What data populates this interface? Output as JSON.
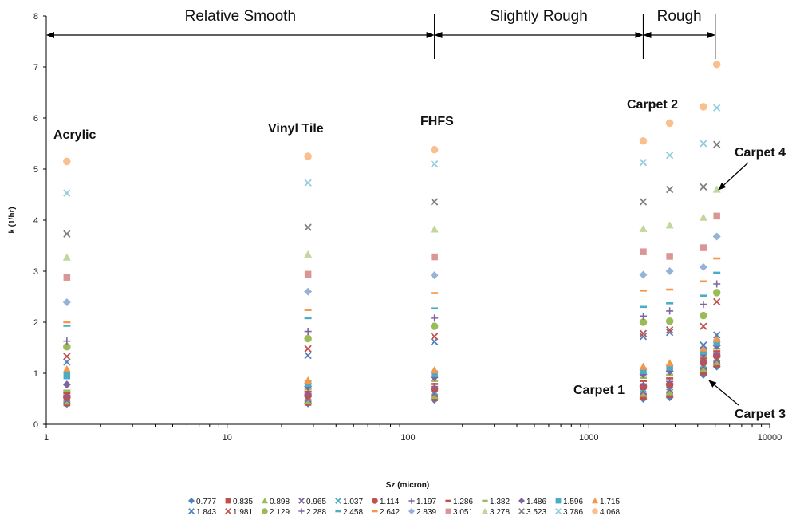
{
  "chart_data": {
    "type": "scatter",
    "x_scale": "log",
    "xlim": [
      1,
      10000
    ],
    "ylim": [
      0,
      8
    ],
    "xlabel": "Sz (micron)",
    "ylabel": "k (1/hr)",
    "xticks": [
      "1",
      "10",
      "100",
      "1000",
      "10000"
    ],
    "yticks": [
      "0",
      "1",
      "2",
      "3",
      "4",
      "5",
      "6",
      "7",
      "8"
    ],
    "grid": false,
    "legend_position": "bottom",
    "regions": [
      {
        "label": "Relative Smooth",
        "from": 1,
        "to": 140
      },
      {
        "label": "Slightly Rough",
        "from": 140,
        "to": 2000
      },
      {
        "label": "Rough",
        "from": 2000,
        "to": 5000
      }
    ],
    "surfaces": [
      "Acrylic",
      "Vinyl Tile",
      "FHFS",
      "Carpet 1",
      "Carpet 2",
      "Carpet 3",
      "Carpet 4"
    ],
    "x": [
      1.3,
      28,
      140,
      2000,
      2800,
      4300,
      5100
    ],
    "series": [
      {
        "name": "0.777",
        "marker": "diamond",
        "color": "#4f81bd",
        "values": [
          0.4,
          0.41,
          0.48,
          0.5,
          0.53,
          0.97,
          1.13
        ]
      },
      {
        "name": "0.835",
        "marker": "square",
        "color": "#c0504d",
        "values": [
          0.42,
          0.43,
          0.52,
          0.55,
          0.58,
          1.03,
          1.18
        ]
      },
      {
        "name": "0.898",
        "marker": "triangle",
        "color": "#9bbb59",
        "values": [
          0.45,
          0.46,
          0.56,
          0.6,
          0.63,
          1.08,
          1.22
        ]
      },
      {
        "name": "0.965",
        "marker": "cross",
        "color": "#8064a2",
        "values": [
          0.47,
          0.49,
          0.6,
          0.64,
          0.68,
          1.13,
          1.26
        ]
      },
      {
        "name": "1.037",
        "marker": "cross",
        "color": "#4bacc6",
        "values": [
          0.5,
          0.52,
          0.64,
          0.69,
          0.73,
          1.17,
          1.3
        ]
      },
      {
        "name": "1.114",
        "marker": "circle",
        "color": "#c0504d",
        "values": [
          0.53,
          0.56,
          0.69,
          0.74,
          0.78,
          1.21,
          1.34
        ]
      },
      {
        "name": "1.197",
        "marker": "plus",
        "color": "#8064a2",
        "values": [
          0.57,
          0.6,
          0.74,
          0.79,
          0.84,
          1.25,
          1.38
        ]
      },
      {
        "name": "1.286",
        "marker": "dash",
        "color": "#c0504d",
        "values": [
          0.61,
          0.64,
          0.79,
          0.85,
          0.9,
          1.29,
          1.43
        ]
      },
      {
        "name": "1.382",
        "marker": "dash",
        "color": "#9bbb59",
        "values": [
          0.66,
          0.69,
          0.85,
          0.91,
          0.97,
          1.34,
          1.48
        ]
      },
      {
        "name": "1.486",
        "marker": "diamond",
        "color": "#8064a2",
        "values": [
          0.78,
          0.74,
          0.92,
          0.98,
          1.04,
          1.38,
          1.54
        ]
      },
      {
        "name": "1.596",
        "marker": "square",
        "color": "#4bacc6",
        "values": [
          0.95,
          0.8,
          0.99,
          1.05,
          1.12,
          1.43,
          1.6
        ]
      },
      {
        "name": "1.715",
        "marker": "triangle",
        "color": "#f79646",
        "values": [
          1.08,
          0.86,
          1.06,
          1.13,
          1.2,
          1.49,
          1.67
        ]
      },
      {
        "name": "1.843",
        "marker": "cross",
        "color": "#4f81bd",
        "values": [
          1.22,
          1.35,
          1.62,
          1.72,
          1.8,
          1.55,
          1.75
        ]
      },
      {
        "name": "1.981",
        "marker": "cross",
        "color": "#c0504d",
        "values": [
          1.33,
          1.48,
          1.72,
          1.78,
          1.85,
          1.92,
          2.4
        ]
      },
      {
        "name": "2.129",
        "marker": "circle",
        "color": "#9bbb59",
        "values": [
          1.52,
          1.68,
          1.92,
          2.0,
          2.02,
          2.13,
          2.58
        ]
      },
      {
        "name": "2.288",
        "marker": "plus",
        "color": "#8064a2",
        "values": [
          1.63,
          1.82,
          2.08,
          2.12,
          2.22,
          2.35,
          2.75
        ]
      },
      {
        "name": "2.458",
        "marker": "dash",
        "color": "#4bacc6",
        "values": [
          1.93,
          2.08,
          2.27,
          2.3,
          2.37,
          2.52,
          2.97
        ]
      },
      {
        "name": "2.642",
        "marker": "dash",
        "color": "#f79646",
        "values": [
          2.0,
          2.24,
          2.57,
          2.62,
          2.64,
          2.8,
          3.25
        ]
      },
      {
        "name": "2.839",
        "marker": "diamond",
        "color": "#95b3d7",
        "values": [
          2.39,
          2.6,
          2.92,
          2.93,
          3.0,
          3.08,
          3.68
        ]
      },
      {
        "name": "3.051",
        "marker": "square",
        "color": "#d99694",
        "values": [
          2.88,
          2.94,
          3.28,
          3.38,
          3.29,
          3.46,
          4.08
        ]
      },
      {
        "name": "3.278",
        "marker": "triangle",
        "color": "#c3d69b",
        "values": [
          3.27,
          3.33,
          3.82,
          3.83,
          3.9,
          4.05,
          4.6
        ]
      },
      {
        "name": "3.523",
        "marker": "cross",
        "color": "#7f7f7f",
        "values": [
          3.73,
          3.86,
          4.36,
          4.36,
          4.6,
          4.65,
          5.48
        ]
      },
      {
        "name": "3.786",
        "marker": "cross",
        "color": "#93cddd",
        "values": [
          4.53,
          4.73,
          5.1,
          5.13,
          5.27,
          5.5,
          6.2
        ]
      },
      {
        "name": "4.068",
        "marker": "circle",
        "color": "#fabf8f",
        "values": [
          5.15,
          5.25,
          5.38,
          5.55,
          5.9,
          6.22,
          7.05
        ]
      }
    ],
    "annotations": {
      "acrylic": "Acrylic",
      "vinyl": "Vinyl Tile",
      "fhfs": "FHFS",
      "carpet1": "Carpet 1",
      "carpet2": "Carpet 2",
      "carpet3": "Carpet 3",
      "carpet4": "Carpet 4"
    }
  }
}
